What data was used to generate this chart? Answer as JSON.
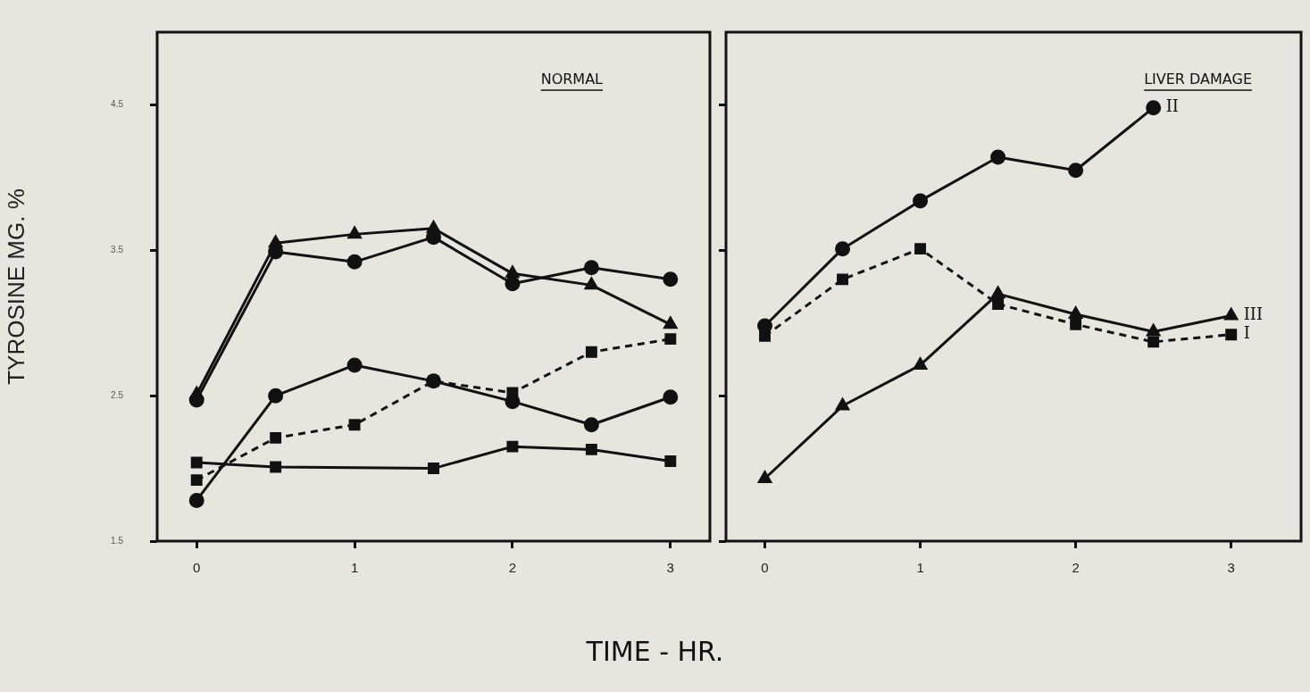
{
  "chart_data": [
    {
      "type": "line",
      "title": "NORMAL",
      "ylabel": "TYROSINE MG. %",
      "x": [
        0,
        0.5,
        1,
        1.5,
        2,
        2.5,
        3
      ],
      "xlim": [
        -0.25,
        3.25
      ],
      "ylim": [
        1.5,
        5.0
      ],
      "xticks": [
        0,
        1,
        2,
        3
      ],
      "yticks": [
        1.5,
        2.5,
        3.5,
        4.5
      ],
      "grid": false,
      "legend": false,
      "series": [
        {
          "color": "#111111",
          "marker": "triangle",
          "values": [
            2.51,
            3.55,
            3.61,
            3.65,
            3.34,
            3.26,
            2.99
          ]
        },
        {
          "color": "#111111",
          "marker": "circle",
          "values": [
            2.47,
            3.49,
            3.42,
            3.59,
            3.27,
            3.38,
            3.3
          ]
        },
        {
          "color": "#111111",
          "marker": "circle",
          "values": [
            1.78,
            2.5,
            2.71,
            2.6,
            2.46,
            2.3,
            2.49
          ]
        },
        {
          "color": "#111111",
          "marker": "square",
          "line_style": "dashed",
          "values": [
            1.92,
            2.21,
            2.3,
            2.6,
            2.52,
            2.8,
            2.89
          ]
        },
        {
          "color": "#111111",
          "marker": "square",
          "values": [
            2.04,
            2.01,
            null,
            2.0,
            2.15,
            2.13,
            2.05
          ]
        }
      ]
    },
    {
      "type": "line",
      "title": "LIVER DAMAGE",
      "xlabel": "TIME - HR.",
      "x": [
        0,
        0.5,
        1,
        1.5,
        2,
        2.5,
        3
      ],
      "xlim": [
        -0.25,
        3.45
      ],
      "ylim": [
        1.5,
        5.0
      ],
      "xticks": [
        0,
        1,
        2,
        3
      ],
      "yticks": [
        1.5,
        2.5,
        3.5,
        4.5
      ],
      "tick_labels": "x",
      "grid": false,
      "legend": "right",
      "series": [
        {
          "name": "II",
          "color": "#111111",
          "marker": "circle",
          "values": [
            2.98,
            3.51,
            3.84,
            4.14,
            4.05,
            4.48,
            null
          ]
        },
        {
          "name": "I",
          "color": "#111111",
          "marker": "square",
          "line_style": "dashed",
          "values": [
            2.91,
            3.3,
            3.51,
            3.13,
            2.99,
            2.87,
            2.92
          ]
        },
        {
          "name": "III",
          "color": "#111111",
          "marker": "triangle",
          "values": [
            1.93,
            2.43,
            2.71,
            3.2,
            3.06,
            2.94,
            3.05
          ]
        }
      ]
    }
  ]
}
